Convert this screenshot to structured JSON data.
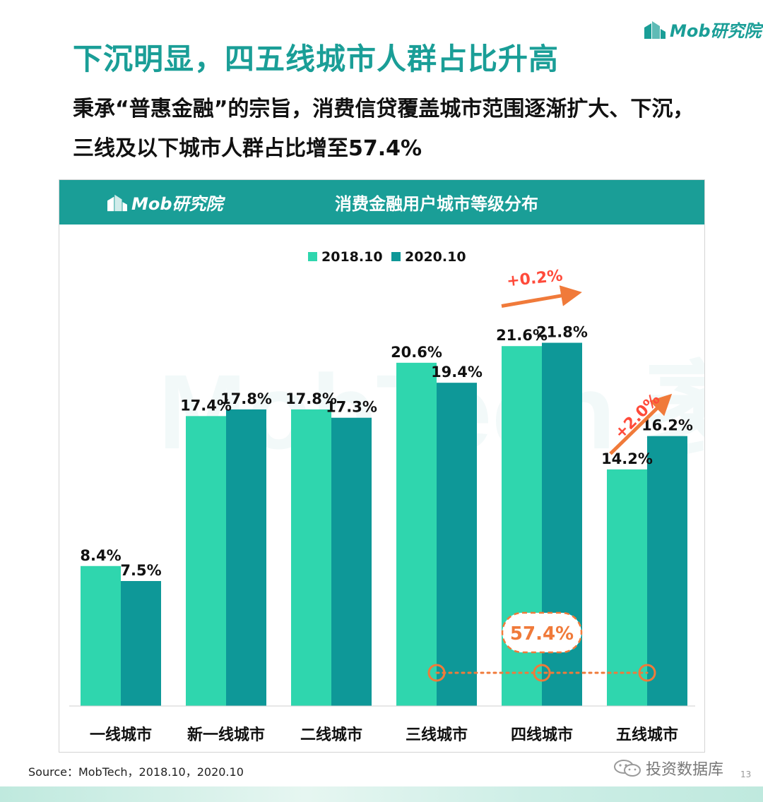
{
  "header": {
    "title": "下沉明显，四五线城市人群占比升高",
    "subtitle": "秉承“普惠金融”的宗旨，消费信贷覆盖城市范围逐渐扩大、下沉，三线及以下城市人群占比增至57.4%",
    "logo_text": "Mob研究院"
  },
  "panel": {
    "logo_text": "Mob研究院",
    "title": "消费金融用户城市等级分布"
  },
  "chart_data": {
    "type": "bar",
    "title": "消费金融用户城市等级分布",
    "categories": [
      "一线城市",
      "新一线城市",
      "二线城市",
      "三线城市",
      "四线城市",
      "五线城市"
    ],
    "series": [
      {
        "name": "2018.10",
        "values": [
          8.4,
          17.4,
          17.8,
          20.6,
          21.6,
          14.2
        ],
        "labels": [
          "8.4%",
          "17.4%",
          "17.8%",
          "20.6%",
          "21.6%",
          "14.2%"
        ],
        "color": "#2fd6ae"
      },
      {
        "name": "2020.10",
        "values": [
          7.5,
          17.8,
          17.3,
          19.4,
          21.8,
          16.2
        ],
        "labels": [
          "7.5%",
          "17.8%",
          "17.3%",
          "19.4%",
          "21.8%",
          "16.2%"
        ],
        "color": "#0e9898"
      }
    ],
    "ylim": [
      0,
      25
    ],
    "grid": false,
    "legend": "top-center",
    "annotations": [
      {
        "text": "+0.2%",
        "category": "四线城市",
        "color": "#ff4a3a"
      },
      {
        "text": "+2.0%",
        "category": "五线城市",
        "color": "#ff4a3a"
      },
      {
        "text": "57.4%",
        "spans": [
          "三线城市",
          "四线城市",
          "五线城市"
        ],
        "color": "#f07a3a"
      }
    ]
  },
  "watermark": "MobTech 袤博",
  "footer": {
    "source": "Source：MobTech，2018.10，2020.10",
    "wechat": "投资数据库",
    "page_number": "13"
  },
  "colors": {
    "brand": "#1a9e97",
    "series_light": "#2fd6ae",
    "series_dark": "#0e9898",
    "highlight": "#f07a3a",
    "delta": "#ff4a3a"
  }
}
